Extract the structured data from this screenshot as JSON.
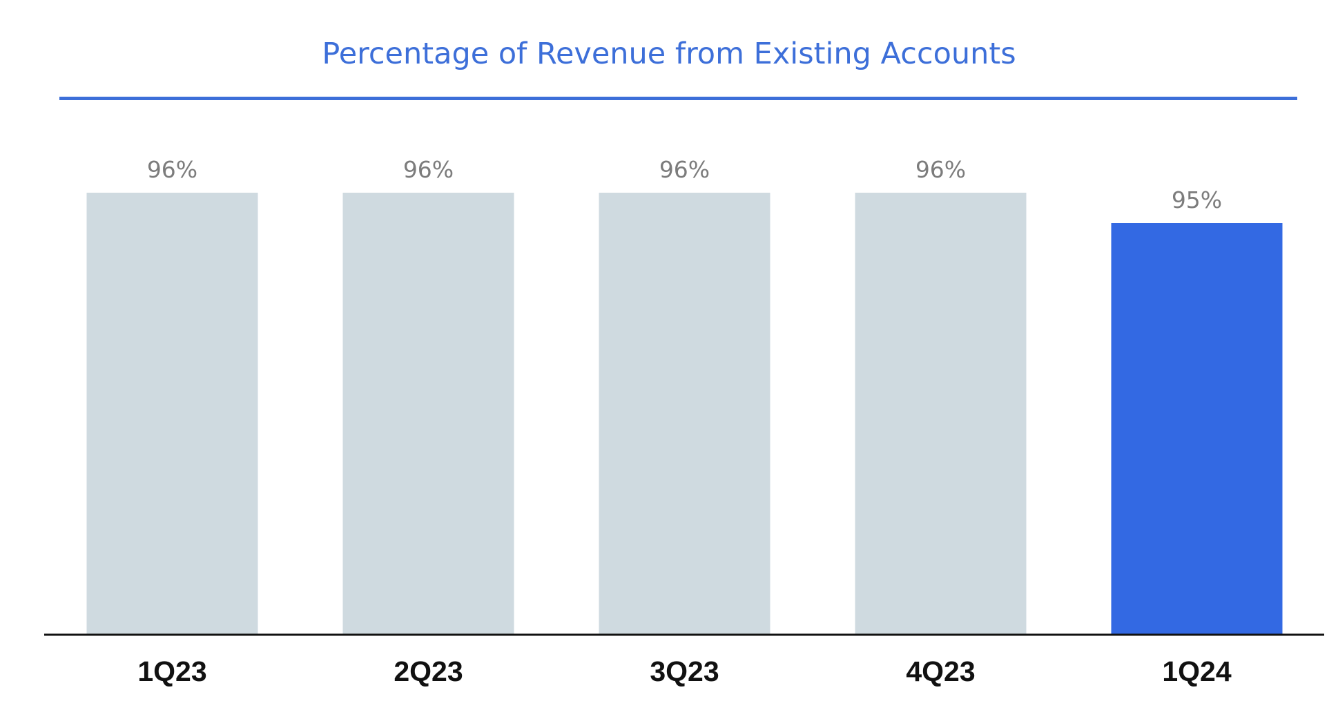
{
  "chart_data": {
    "type": "bar",
    "title": "Percentage of Revenue from Existing Accounts",
    "xlabel": "",
    "ylabel": "",
    "categories": [
      "1Q23",
      "2Q23",
      "3Q23",
      "4Q23",
      "1Q24"
    ],
    "values": [
      96,
      96,
      96,
      96,
      95
    ],
    "value_labels": [
      "96%",
      "96%",
      "96%",
      "96%",
      "95%"
    ],
    "unit": "%",
    "grid": false,
    "legend": "none",
    "colors": {
      "title": "#3d6fd9",
      "title_rule": "#3d6fd9",
      "bar_default": "#cfdae0",
      "bar_highlight": "#3369e3",
      "value_label": "#7c7c7c",
      "category_label": "#111111",
      "baseline": "#111111"
    },
    "highlighted_category": "1Q24"
  }
}
